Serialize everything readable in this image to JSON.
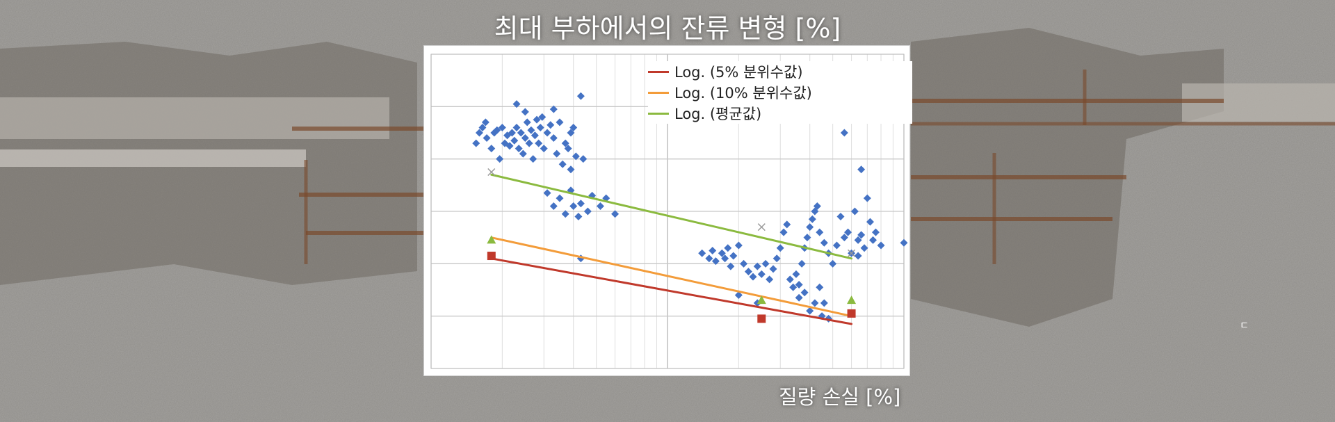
{
  "page": {
    "title": "최대 부하에서의 잔류 변형 [%]",
    "xlabel": "질량 손실 [%]"
  },
  "chart_data": {
    "type": "scatter",
    "title": "최대 부하에서의 잔류 변형 [%]",
    "xlabel": "질량 손실 [%]",
    "ylabel": "",
    "x_scale": "log",
    "xlim": [
      1,
      100
    ],
    "ylim": [
      0,
      6
    ],
    "grid": true,
    "legend_position": "top-right",
    "series": [
      {
        "name": "",
        "kind": "scatter",
        "marker": "diamond",
        "color": "#4472c4",
        "points": [
          [
            1.55,
            4.3
          ],
          [
            1.6,
            4.5
          ],
          [
            1.65,
            4.6
          ],
          [
            1.7,
            4.7
          ],
          [
            1.72,
            4.4
          ],
          [
            1.8,
            4.2
          ],
          [
            1.85,
            4.5
          ],
          [
            1.9,
            4.55
          ],
          [
            1.95,
            4.0
          ],
          [
            2.0,
            4.6
          ],
          [
            2.05,
            4.3
          ],
          [
            2.1,
            4.45
          ],
          [
            2.15,
            4.25
          ],
          [
            2.2,
            4.5
          ],
          [
            2.25,
            4.35
          ],
          [
            2.3,
            4.6
          ],
          [
            2.35,
            4.2
          ],
          [
            2.4,
            4.5
          ],
          [
            2.45,
            4.1
          ],
          [
            2.5,
            4.4
          ],
          [
            2.55,
            4.7
          ],
          [
            2.6,
            4.3
          ],
          [
            2.65,
            4.55
          ],
          [
            2.7,
            4.0
          ],
          [
            2.75,
            4.45
          ],
          [
            2.8,
            4.75
          ],
          [
            2.85,
            4.3
          ],
          [
            2.9,
            4.6
          ],
          [
            2.95,
            4.8
          ],
          [
            3.0,
            4.2
          ],
          [
            3.1,
            4.5
          ],
          [
            3.2,
            4.65
          ],
          [
            3.3,
            4.4
          ],
          [
            3.4,
            4.1
          ],
          [
            3.5,
            4.7
          ],
          [
            3.6,
            3.9
          ],
          [
            3.7,
            4.3
          ],
          [
            3.8,
            4.2
          ],
          [
            3.9,
            3.8
          ],
          [
            4.0,
            4.6
          ],
          [
            2.3,
            5.05
          ],
          [
            2.5,
            4.9
          ],
          [
            3.3,
            4.95
          ],
          [
            4.3,
            5.2
          ],
          [
            3.9,
            4.5
          ],
          [
            4.1,
            4.05
          ],
          [
            4.4,
            4.0
          ],
          [
            3.3,
            3.1
          ],
          [
            3.5,
            3.25
          ],
          [
            3.7,
            2.95
          ],
          [
            3.9,
            3.4
          ],
          [
            4.0,
            3.1
          ],
          [
            4.2,
            2.9
          ],
          [
            4.3,
            3.15
          ],
          [
            4.6,
            3.0
          ],
          [
            4.8,
            3.3
          ],
          [
            5.2,
            3.1
          ],
          [
            5.5,
            3.25
          ],
          [
            6.0,
            2.95
          ],
          [
            4.3,
            2.1
          ],
          [
            3.1,
            3.35
          ],
          [
            14.0,
            2.2
          ],
          [
            15.0,
            2.1
          ],
          [
            15.5,
            2.25
          ],
          [
            16.0,
            2.05
          ],
          [
            17.0,
            2.2
          ],
          [
            17.5,
            2.1
          ],
          [
            18.0,
            2.3
          ],
          [
            18.5,
            1.95
          ],
          [
            19.0,
            2.15
          ],
          [
            20.0,
            2.35
          ],
          [
            21.0,
            2.0
          ],
          [
            22.0,
            1.85
          ],
          [
            23.0,
            1.75
          ],
          [
            24.0,
            1.95
          ],
          [
            25.0,
            1.8
          ],
          [
            26.0,
            2.0
          ],
          [
            27.0,
            1.7
          ],
          [
            28.0,
            1.9
          ],
          [
            29.0,
            2.1
          ],
          [
            30.0,
            2.3
          ],
          [
            31.0,
            2.6
          ],
          [
            32.0,
            2.75
          ],
          [
            33.0,
            1.7
          ],
          [
            34.0,
            1.55
          ],
          [
            35.0,
            1.8
          ],
          [
            36.0,
            1.6
          ],
          [
            37.0,
            2.0
          ],
          [
            38.0,
            2.3
          ],
          [
            39.0,
            2.5
          ],
          [
            40.0,
            2.7
          ],
          [
            41.0,
            2.85
          ],
          [
            42.0,
            3.0
          ],
          [
            43.0,
            3.1
          ],
          [
            44.0,
            2.6
          ],
          [
            46.0,
            2.4
          ],
          [
            48.0,
            2.2
          ],
          [
            50.0,
            2.0
          ],
          [
            52.0,
            2.35
          ],
          [
            54.0,
            2.9
          ],
          [
            56.0,
            2.5
          ],
          [
            58.0,
            2.6
          ],
          [
            60.0,
            2.2
          ],
          [
            62.0,
            3.0
          ],
          [
            64.0,
            2.45
          ],
          [
            66.0,
            2.55
          ],
          [
            68.0,
            2.3
          ],
          [
            70.0,
            3.25
          ],
          [
            72.0,
            2.8
          ],
          [
            74.0,
            2.45
          ],
          [
            76.0,
            2.6
          ],
          [
            80.0,
            2.35
          ],
          [
            56.0,
            4.5
          ],
          [
            64.0,
            2.15
          ],
          [
            66.0,
            3.8
          ],
          [
            45.0,
            1.0
          ],
          [
            42.0,
            1.25
          ],
          [
            38.0,
            1.45
          ],
          [
            44.0,
            1.55
          ],
          [
            46.0,
            1.25
          ],
          [
            40.0,
            1.1
          ],
          [
            36.0,
            1.35
          ],
          [
            20.0,
            1.4
          ],
          [
            24.0,
            1.25
          ],
          [
            48.0,
            0.95
          ],
          [
            100.0,
            2.4
          ]
        ]
      },
      {
        "name": "Log. (5% 분위수값)",
        "kind": "trendline",
        "color": "#c0392b",
        "x": [
          1.8,
          60
        ],
        "y": [
          2.1,
          0.85
        ]
      },
      {
        "name": "Log. (10% 분위수값)",
        "kind": "trendline",
        "color": "#f39c3a",
        "x": [
          1.8,
          60
        ],
        "y": [
          2.5,
          1.0
        ]
      },
      {
        "name": "Log. (평균값)",
        "kind": "trendline",
        "color": "#8bba3f",
        "x": [
          1.8,
          60
        ],
        "y": [
          3.7,
          2.1
        ]
      },
      {
        "name": "",
        "kind": "markers",
        "marker": "square",
        "color": "#c0392b",
        "points": [
          [
            1.8,
            2.15
          ],
          [
            25.0,
            0.95
          ],
          [
            60.0,
            1.05
          ]
        ]
      },
      {
        "name": "",
        "kind": "markers",
        "marker": "triangle",
        "color": "#8bba3f",
        "points": [
          [
            1.8,
            2.45
          ],
          [
            25.0,
            1.3
          ],
          [
            60.0,
            1.3
          ]
        ]
      },
      {
        "name": "",
        "kind": "markers",
        "marker": "x",
        "color": "#999999",
        "points": [
          [
            1.8,
            3.75
          ],
          [
            25.0,
            2.7
          ],
          [
            60.0,
            2.2
          ]
        ]
      }
    ]
  },
  "colors": {
    "title_text": "#ffffff",
    "chart_background": "#ffffff",
    "grid": "#cfcfcf",
    "scatter": "#4472c4",
    "trend_5": "#c0392b",
    "trend_10": "#f39c3a",
    "trend_mean": "#8bba3f"
  },
  "stray_mark": "ㄷ"
}
